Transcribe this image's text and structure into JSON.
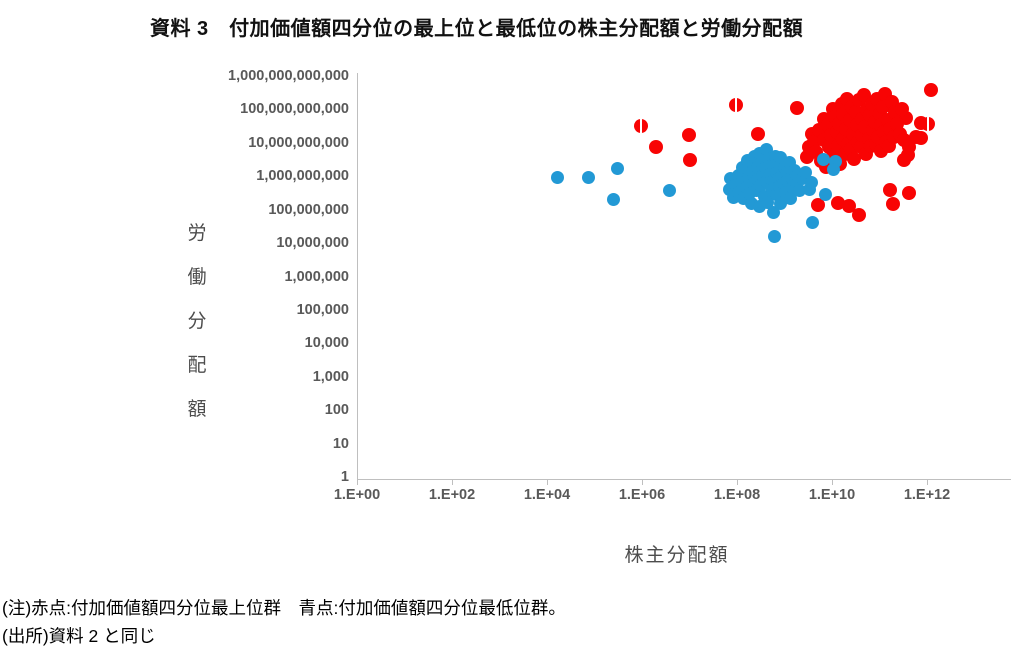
{
  "title": "資料 3　付加価値額四分位の最上位と最低位の株主分配額と労働分配額",
  "notes": {
    "line1": "(注)赤点:付加価値額四分位最上位群　青点:付加価値額四分位最低位群。",
    "line2": "(出所)資料 2 と同じ"
  },
  "chart_data": {
    "type": "scatter",
    "title": "資料 3　付加価値額四分位の最上位と最低位の株主分配額と労働分配額",
    "grid": false,
    "legend": "none (explained in note below chart)",
    "x_axis": {
      "title": "株主分配額",
      "scale": "log10",
      "tick_labels": [
        "1.E+00",
        "1.E+02",
        "1.E+04",
        "1.E+06",
        "1.E+08",
        "1.E+10",
        "1.E+12"
      ],
      "tick_exponents": [
        0,
        2,
        4,
        6,
        8,
        10,
        12
      ],
      "range_exponents": [
        0,
        14
      ]
    },
    "y_axis": {
      "title": "労働分配額",
      "title_chars": [
        "労",
        "働",
        "分",
        "配",
        "額"
      ],
      "scale": "log10",
      "tick_labels": [
        "1,000,000,000,000",
        "100,000,000,000",
        "10,000,000,000",
        "1,000,000,000",
        "100,000,000",
        "10,000,000",
        "1,000,000",
        "100,000",
        "10,000",
        "1,000",
        "100",
        "10",
        "1"
      ],
      "tick_exponents": [
        12,
        11,
        10,
        9,
        8,
        7,
        6,
        5,
        4,
        3,
        2,
        1,
        0
      ],
      "range_exponents": [
        0,
        12
      ]
    },
    "points_are": "log10 exponents [log10(株主分配額), log10(労働分配額), optional split-marker flag]",
    "series": [
      {
        "name": "付加価値額四分位最上位群",
        "color": "#f80404",
        "marker": "circle",
        "marker_px": 14,
        "points_log10": [
          [
            5.96,
            10.53,
            1
          ],
          [
            6.27,
            9.91
          ],
          [
            6.97,
            10.26
          ],
          [
            6.99,
            9.52
          ],
          [
            7.96,
            11.16,
            1
          ],
          [
            8.42,
            10.29
          ],
          [
            9.24,
            11.07
          ],
          [
            9.68,
            8.17
          ],
          [
            10.1,
            8.23
          ],
          [
            10.34,
            8.14
          ],
          [
            10.55,
            7.87
          ],
          [
            11.2,
            8.62
          ],
          [
            11.26,
            8.2
          ],
          [
            11.6,
            8.53
          ],
          [
            11.54,
            10.77
          ],
          [
            11.85,
            10.62
          ],
          [
            12.0,
            10.59,
            1
          ],
          [
            11.75,
            10.2
          ],
          [
            11.85,
            10.17
          ],
          [
            11.6,
            9.9
          ],
          [
            11.58,
            9.66
          ],
          [
            11.49,
            9.52
          ],
          [
            12.07,
            11.6
          ],
          [
            9.45,
            9.6
          ],
          [
            9.5,
            9.9
          ],
          [
            9.55,
            10.3
          ],
          [
            9.6,
            10.05
          ],
          [
            9.65,
            9.75
          ],
          [
            9.7,
            10.4
          ],
          [
            9.75,
            9.5
          ],
          [
            9.8,
            10.75
          ],
          [
            9.82,
            10.1
          ],
          [
            9.85,
            9.3
          ],
          [
            9.9,
            10.55
          ],
          [
            9.92,
            9.9
          ],
          [
            9.95,
            10.25
          ],
          [
            10.0,
            11.05
          ],
          [
            10.0,
            9.6
          ],
          [
            10.05,
            10.8
          ],
          [
            10.08,
            10.35
          ],
          [
            10.1,
            9.95
          ],
          [
            10.12,
            10.6
          ],
          [
            10.15,
            9.4
          ],
          [
            10.18,
            11.2
          ],
          [
            10.2,
            10.15
          ],
          [
            10.22,
            10.9
          ],
          [
            10.25,
            9.7
          ],
          [
            10.28,
            10.45
          ],
          [
            10.3,
            11.35
          ],
          [
            10.32,
            10.0
          ],
          [
            10.35,
            10.7
          ],
          [
            10.38,
            9.85
          ],
          [
            10.4,
            11.1
          ],
          [
            10.42,
            10.3
          ],
          [
            10.45,
            9.55
          ],
          [
            10.48,
            10.95
          ],
          [
            10.5,
            10.55
          ],
          [
            10.52,
            10.05
          ],
          [
            10.55,
            11.3
          ],
          [
            10.58,
            9.9
          ],
          [
            10.6,
            10.75
          ],
          [
            10.62,
            10.25
          ],
          [
            10.65,
            11.45
          ],
          [
            10.68,
            10.5
          ],
          [
            10.7,
            9.7
          ],
          [
            10.72,
            11.0
          ],
          [
            10.75,
            10.15
          ],
          [
            10.78,
            10.85
          ],
          [
            10.8,
            9.95
          ],
          [
            10.82,
            11.2
          ],
          [
            10.85,
            10.4
          ],
          [
            10.88,
            10.65
          ],
          [
            10.9,
            10.0
          ],
          [
            10.92,
            11.35
          ],
          [
            10.95,
            10.2
          ],
          [
            10.98,
            10.9
          ],
          [
            11.0,
            9.8
          ],
          [
            11.02,
            10.55
          ],
          [
            11.05,
            11.1
          ],
          [
            11.08,
            10.35
          ],
          [
            11.1,
            11.5
          ],
          [
            11.12,
            10.05
          ],
          [
            11.15,
            10.7
          ],
          [
            11.18,
            9.95
          ],
          [
            11.2,
            10.45
          ],
          [
            11.25,
            11.25
          ],
          [
            11.28,
            10.2
          ],
          [
            11.3,
            10.95
          ],
          [
            11.35,
            10.6
          ],
          [
            11.4,
            10.3
          ],
          [
            11.45,
            11.05
          ],
          [
            11.5,
            10.1
          ]
        ]
      },
      {
        "name": "付加価値額四分位最低位群",
        "color": "#2299d5",
        "marker": "circle",
        "marker_px": 13,
        "points_log10": [
          [
            4.21,
            8.98
          ],
          [
            4.86,
            8.98
          ],
          [
            5.47,
            9.25
          ],
          [
            5.37,
            8.33
          ],
          [
            6.55,
            8.6
          ],
          [
            7.82,
            8.62
          ],
          [
            7.85,
            8.95
          ],
          [
            7.9,
            8.4
          ],
          [
            7.95,
            8.78
          ],
          [
            8.0,
            9.05
          ],
          [
            8.02,
            8.55
          ],
          [
            8.08,
            8.85
          ],
          [
            8.1,
            9.28
          ],
          [
            8.12,
            8.35
          ],
          [
            8.18,
            8.7
          ],
          [
            8.2,
            9.5
          ],
          [
            8.22,
            9.0
          ],
          [
            8.25,
            8.5
          ],
          [
            8.28,
            8.22
          ],
          [
            8.3,
            9.18
          ],
          [
            8.32,
            8.82
          ],
          [
            8.35,
            9.62
          ],
          [
            8.38,
            8.6
          ],
          [
            8.4,
            9.3
          ],
          [
            8.42,
            8.92
          ],
          [
            8.45,
            8.12
          ],
          [
            8.45,
            9.72
          ],
          [
            8.48,
            8.75
          ],
          [
            8.5,
            9.45
          ],
          [
            8.52,
            9.05
          ],
          [
            8.55,
            8.42
          ],
          [
            8.58,
            9.28
          ],
          [
            8.6,
            9.82
          ],
          [
            8.6,
            8.88
          ],
          [
            8.62,
            8.25
          ],
          [
            8.65,
            9.55
          ],
          [
            8.68,
            9.1
          ],
          [
            8.7,
            8.68
          ],
          [
            8.72,
            9.38
          ],
          [
            8.75,
            8.9
          ],
          [
            8.75,
            7.95
          ],
          [
            8.78,
            9.62
          ],
          [
            8.8,
            9.15
          ],
          [
            8.82,
            8.48
          ],
          [
            8.85,
            8.95
          ],
          [
            8.85,
            9.4
          ],
          [
            8.88,
            8.72
          ],
          [
            8.9,
            9.58
          ],
          [
            8.9,
            8.2
          ],
          [
            8.92,
            9.02
          ],
          [
            8.95,
            8.82
          ],
          [
            8.98,
            9.3
          ],
          [
            9.0,
            8.55
          ],
          [
            9.02,
            9.12
          ],
          [
            9.05,
            8.9
          ],
          [
            9.08,
            9.45
          ],
          [
            9.1,
            8.35
          ],
          [
            9.12,
            9.0
          ],
          [
            9.15,
            8.7
          ],
          [
            9.18,
            9.2
          ],
          [
            9.22,
            8.88
          ],
          [
            9.25,
            9.05
          ],
          [
            9.3,
            8.6
          ],
          [
            9.35,
            8.95
          ],
          [
            9.42,
            9.15
          ],
          [
            9.5,
            8.62
          ],
          [
            9.55,
            8.85
          ],
          [
            8.76,
            7.24
          ],
          [
            9.56,
            7.66
          ],
          [
            9.81,
            9.52
          ],
          [
            10.06,
            9.46
          ],
          [
            10.02,
            9.22
          ],
          [
            9.85,
            8.47
          ]
        ]
      }
    ]
  }
}
